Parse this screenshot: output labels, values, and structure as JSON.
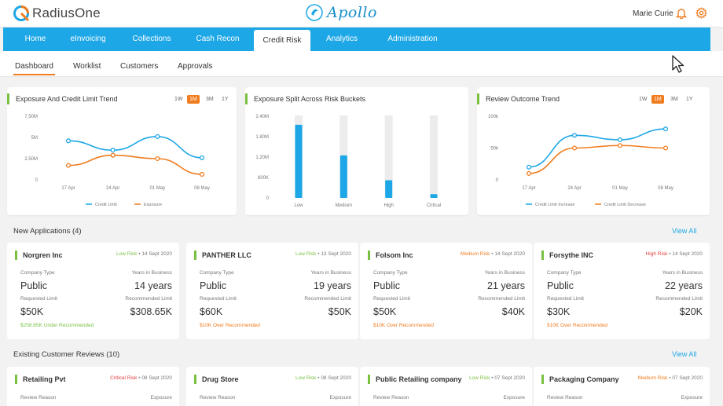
{
  "brand": {
    "name": "RadiusOne",
    "app": "Apollo"
  },
  "user": {
    "name": "Marie Curie"
  },
  "nav": [
    "Home",
    "eInvoicing",
    "Collections",
    "Cash Recon",
    "Credit Risk",
    "Analytics",
    "Administration"
  ],
  "subtabs": [
    "Dashboard",
    "Worklist",
    "Customers",
    "Approvals"
  ],
  "colors": {
    "accent": "#f07c1e",
    "nav": "#1ea7e6",
    "blue_series": "#1ea7e6",
    "orange_series": "#f07c1e",
    "low_risk": "#7ac142",
    "medium_risk": "#f07c1e",
    "high_risk": "#e23b3b"
  },
  "ranges": [
    "1W",
    "1M",
    "3M",
    "1Y"
  ],
  "chart_data": [
    {
      "type": "line",
      "title": "Exposure And Credit Limit Trend",
      "categories": [
        "17 Apr",
        "24 Apr",
        "01 May",
        "08 May"
      ],
      "yticks": [
        "7.50M",
        "5M",
        "2.50M",
        "0"
      ],
      "ylim": [
        0,
        7500000
      ],
      "series": [
        {
          "name": "Credit Limit",
          "color": "#1ea7e6",
          "values": [
            4600000,
            3500000,
            5100000,
            2600000
          ]
        },
        {
          "name": "Exposure",
          "color": "#f07c1e",
          "values": [
            1700000,
            2900000,
            2500000,
            650000
          ]
        }
      ],
      "legend": "bottom"
    },
    {
      "type": "bar",
      "title": "Exposure Split Across Risk Buckets",
      "categories": [
        "Low",
        "Medium",
        "High",
        "Critical"
      ],
      "yticks": [
        "2.40M",
        "1.80M",
        "1.20M",
        "600K",
        "0"
      ],
      "ylim": [
        0,
        2400000
      ],
      "values": [
        2150000,
        1250000,
        520000,
        110000
      ],
      "color": "#1ea7e6"
    },
    {
      "type": "line",
      "title": "Review Outcome Trend",
      "categories": [
        "17 Apr",
        "24 Apr",
        "01 May",
        "08 May"
      ],
      "yticks": [
        "100k",
        "50k",
        "0"
      ],
      "ylim": [
        0,
        100000
      ],
      "series": [
        {
          "name": "Credit Limit Increase",
          "color": "#1ea7e6",
          "values": [
            20000,
            70000,
            63000,
            80000
          ]
        },
        {
          "name": "Credit Limit Decrease",
          "color": "#f07c1e",
          "values": [
            10000,
            50000,
            54000,
            50000
          ]
        }
      ],
      "legend": "bottom"
    }
  ],
  "new_applications": {
    "title": "New Applications (4)",
    "view_all": "View All",
    "labels": {
      "company_type": "Company Type",
      "years": "Years in Business",
      "requested": "Requested Limit",
      "recommended": "Recommended Limit"
    },
    "items": [
      {
        "name": "Norgren Inc",
        "risk": "Low Risk",
        "risk_level": "low",
        "date": "14 Sept 2020",
        "company_type": "Public",
        "years": "14 years",
        "requested": "$50K",
        "recommended": "$308.65K",
        "note": "$258.65K Under Recommended",
        "note_level": "low"
      },
      {
        "name": "PANTHER LLC",
        "risk": "Low Risk",
        "risk_level": "low",
        "date": "13 Sept 2020",
        "company_type": "Public",
        "years": "19 years",
        "requested": "$60K",
        "recommended": "$50K",
        "note": "$10K Over Recommended",
        "note_level": "medium"
      },
      {
        "name": "Folsom Inc",
        "risk": "Medium Risk",
        "risk_level": "medium",
        "date": "14 Sept 2020",
        "company_type": "Public",
        "years": "21 years",
        "requested": "$50K",
        "recommended": "$40K",
        "note": "$10K Over Recommended",
        "note_level": "medium"
      },
      {
        "name": "Forsythe INC",
        "risk": "High Risk",
        "risk_level": "high",
        "date": "14 Sept 2020",
        "company_type": "Public",
        "years": "22 years",
        "requested": "$30K",
        "recommended": "$20K",
        "note": "$10K Over Recommended",
        "note_level": "medium"
      }
    ]
  },
  "existing_reviews": {
    "title": "Existing Customer Reviews (10)",
    "view_all": "View All",
    "labels": {
      "reason": "Review Reason",
      "exposure": "Exposure"
    },
    "items": [
      {
        "name": "Retailing Pvt",
        "risk": "Critical Risk",
        "risk_level": "high",
        "date": "08 Sept 2020"
      },
      {
        "name": "Drug Store",
        "risk": "Low Risk",
        "risk_level": "low",
        "date": "08 Sept 2020"
      },
      {
        "name": "Public Retailing company",
        "risk": "Low Risk",
        "risk_level": "low",
        "date": "07 Sept 2020"
      },
      {
        "name": "Packaging Company",
        "risk": "Medium Risk",
        "risk_level": "medium",
        "date": "07 Sept 2020"
      }
    ]
  }
}
